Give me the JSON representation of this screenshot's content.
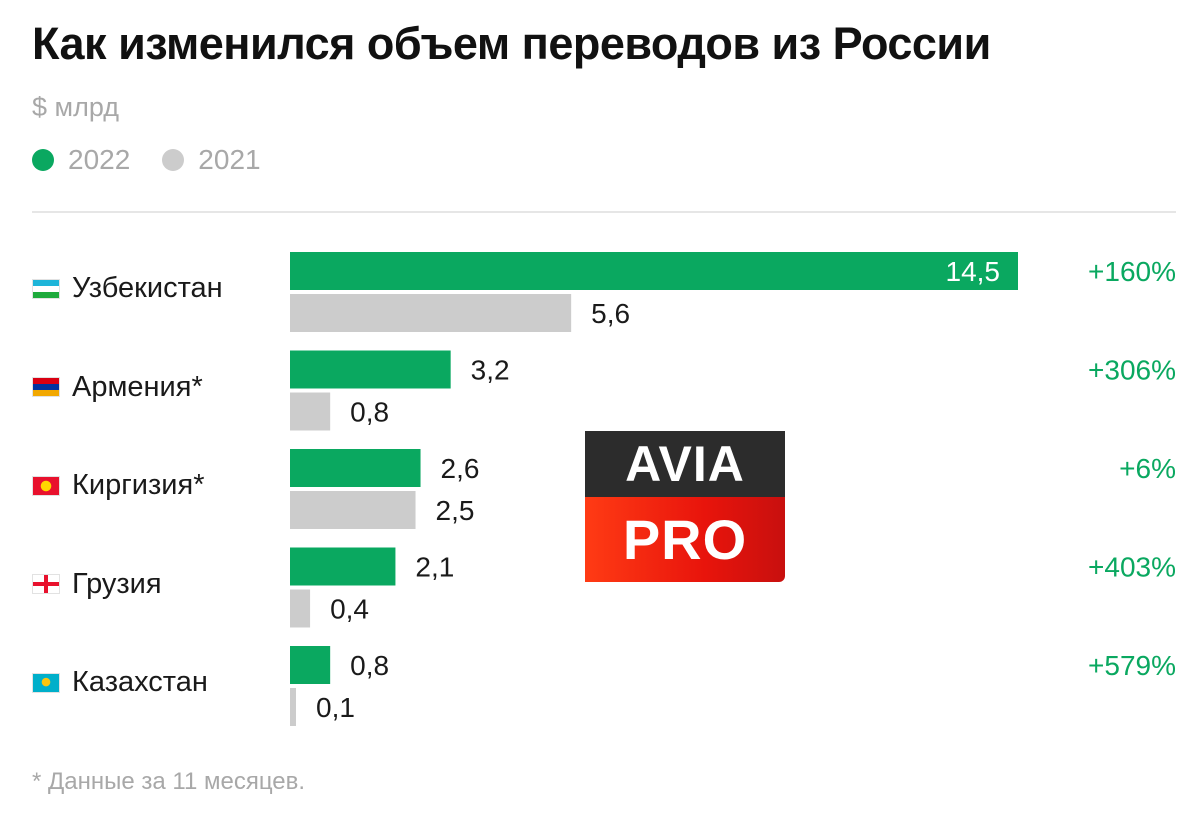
{
  "title": "Как изменился объем переводов из России",
  "unit": "$ млрд",
  "legend": [
    {
      "label": "2022",
      "color": "#0aa860"
    },
    {
      "label": "2021",
      "color": "#cccccc"
    }
  ],
  "footnote": "* Данные за 11 месяцев.",
  "watermark": {
    "top_text": "AVIA",
    "bottom_text": "PRO"
  },
  "flags": {
    "uz": [
      "#1eb5d9",
      "#ffffff",
      "#1eaa3c"
    ],
    "am": [
      "#d90012",
      "#0033a0",
      "#f2a800"
    ],
    "kg": [
      "#e8112d",
      "#ffd700"
    ],
    "ge": [
      "#ffffff",
      "#e8112d"
    ],
    "kz": [
      "#00afca",
      "#fec50c"
    ]
  },
  "chart_data": {
    "type": "bar",
    "orientation": "horizontal",
    "title": "Как изменился объем переводов из России",
    "unit": "$ млрд",
    "categories": [
      "Узбекистан",
      "Армения*",
      "Киргизия*",
      "Грузия",
      "Казахстан"
    ],
    "flag_keys": [
      "uz",
      "am",
      "kg",
      "ge",
      "kz"
    ],
    "series": [
      {
        "name": "2022",
        "color": "#0aa860",
        "values": [
          14.5,
          3.2,
          2.6,
          2.1,
          0.8
        ],
        "labels": [
          "14,5",
          "3,2",
          "2,6",
          "2,1",
          "0,8"
        ]
      },
      {
        "name": "2021",
        "color": "#cccccc",
        "values": [
          5.6,
          0.8,
          2.5,
          0.4,
          0.1
        ],
        "labels": [
          "5,6",
          "0,8",
          "2,5",
          "0,4",
          "0,1"
        ]
      }
    ],
    "changes": [
      "+160%",
      "+306%",
      "+6%",
      "+403%",
      "+579%"
    ],
    "change_color": "#0aa860",
    "xlim": [
      0,
      14.5
    ],
    "grid": false,
    "legend_position": "top-left"
  }
}
